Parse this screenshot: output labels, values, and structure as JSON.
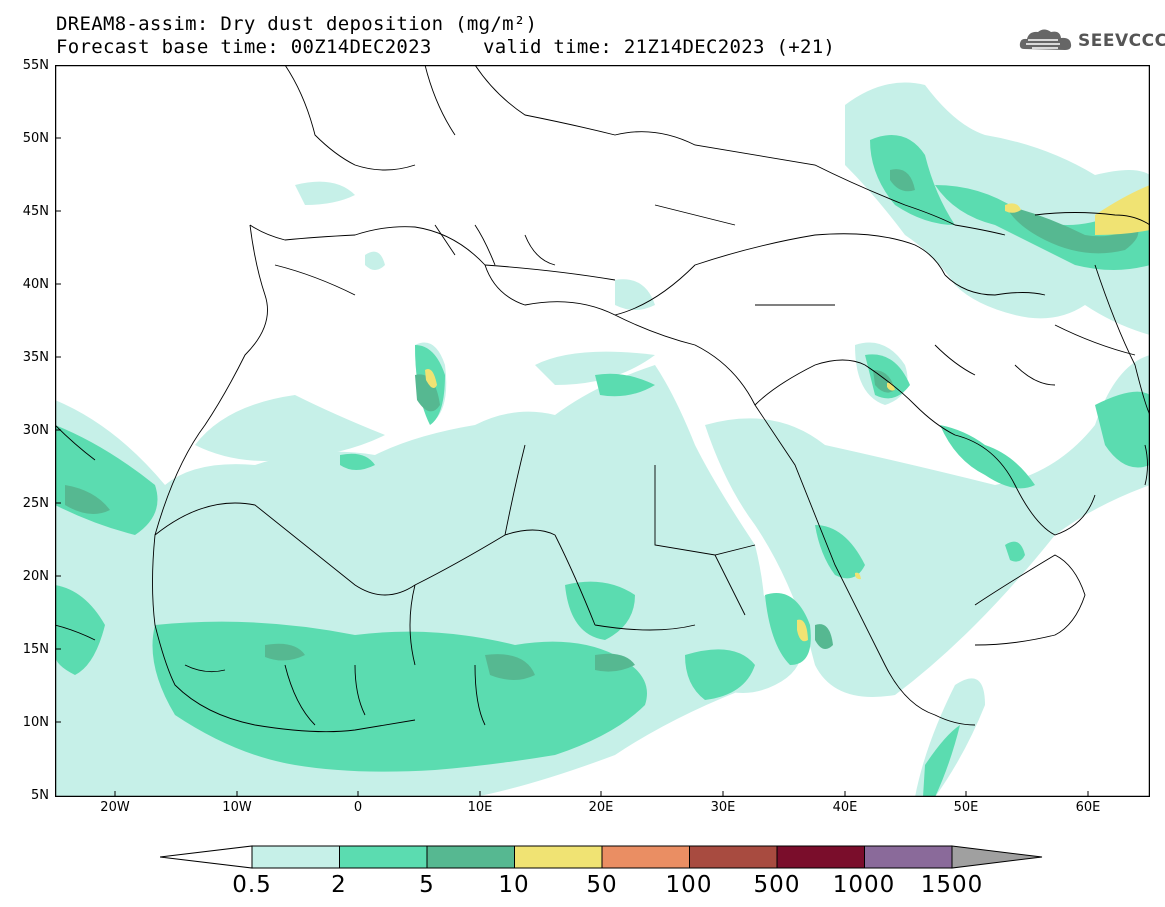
{
  "header": {
    "title_line1": "DREAM8-assim: Dry dust deposition (mg/m²)",
    "title_line2_left": "Forecast base time: 00Z14DEC2023",
    "title_line2_right": "valid time: 21Z14DEC2023 (+21)",
    "logo_text": "SEEVCCC",
    "logo_icon": "cloud-icon"
  },
  "axes": {
    "lat_labels": [
      "55N",
      "50N",
      "45N",
      "40N",
      "35N",
      "30N",
      "25N",
      "20N",
      "15N",
      "10N",
      "5N"
    ],
    "lon_labels": [
      "20W",
      "10W",
      "0",
      "10E",
      "20E",
      "30E",
      "40E",
      "50E",
      "60E"
    ]
  },
  "colorbar": {
    "labels": [
      "0.5",
      "2",
      "5",
      "10",
      "50",
      "100",
      "500",
      "1000",
      "1500"
    ],
    "colors": [
      "#c6f0e8",
      "#5bdcb0",
      "#56b891",
      "#f0e373",
      "#ea8e63",
      "#a84b40",
      "#7a0d2b",
      "#8a6a9a",
      "#a0a0a0"
    ]
  }
}
